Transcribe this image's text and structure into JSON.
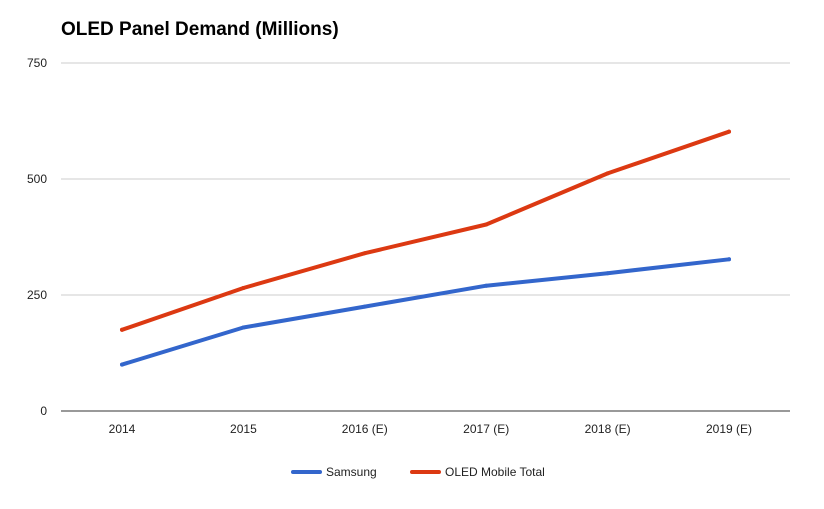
{
  "chart_data": {
    "type": "line",
    "title": "OLED Panel Demand (Millions)",
    "xlabel": "",
    "ylabel": "",
    "categories": [
      "2014",
      "2015",
      "2016 (E)",
      "2017 (E)",
      "2018 (E)",
      "2019 (E)"
    ],
    "ylim": [
      0,
      750
    ],
    "yticks": [
      0,
      250,
      500,
      750
    ],
    "ytick_labels": [
      "0",
      "250",
      "500",
      "750"
    ],
    "grid": true,
    "legend_position": "bottom",
    "series": [
      {
        "name": "Samsung",
        "color": "#3366cc",
        "values": [
          100,
          180,
          225,
          270,
          297,
          327
        ]
      },
      {
        "name": "OLED Mobile Total",
        "color": "#dc3912",
        "values": [
          175,
          265,
          340,
          402,
          512,
          602
        ]
      }
    ]
  }
}
